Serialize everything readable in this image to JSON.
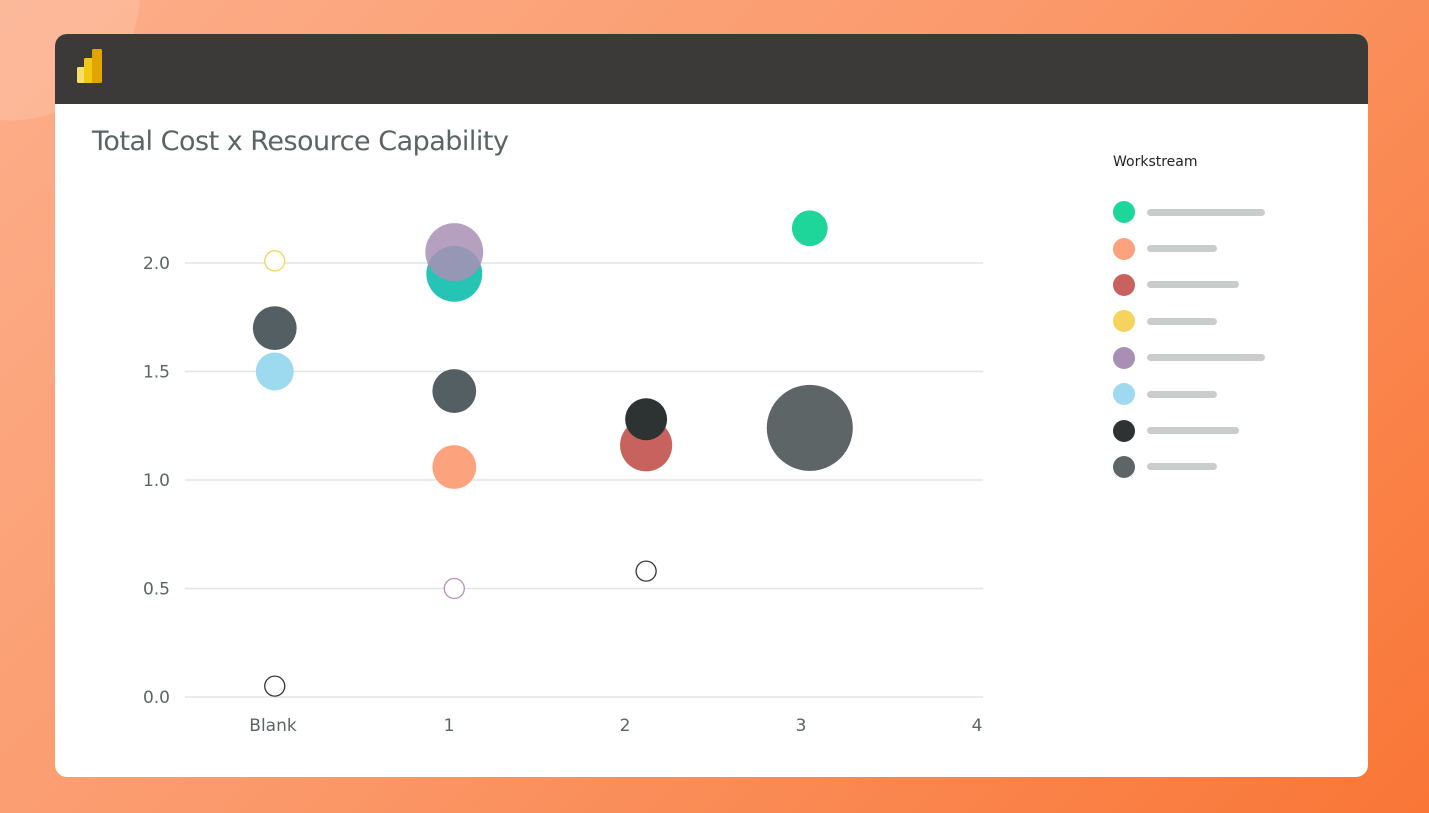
{
  "app": {
    "logo": "power-bi-logo"
  },
  "chart_data": {
    "type": "scatter",
    "title": "Total Cost x Resource Capability",
    "xlabel": "",
    "ylabel": "",
    "x_categories": [
      "Blank",
      "1",
      "2",
      "3",
      "4"
    ],
    "y_ticks": [
      "0.0",
      "0.5",
      "1.0",
      "1.5",
      "2.0"
    ],
    "ylim": [
      0,
      2.3
    ],
    "grid": true,
    "legend": {
      "title": "Workstream",
      "placement": "right",
      "colors": [
        "#1fd69a",
        "#fca27c",
        "#c8625f",
        "#f6d35c",
        "#a98fb4",
        "#9dd9ef",
        "#2d3232",
        "#5e6566"
      ]
    },
    "points": [
      {
        "x": 0.01,
        "y": 2.01,
        "size": 1,
        "color": "#f6d35c",
        "hollow": true
      },
      {
        "x": 0.01,
        "y": 1.7,
        "size": 4.8,
        "color": "#535f62",
        "hollow": false
      },
      {
        "x": 0.01,
        "y": 1.5,
        "size": 3.6,
        "color": "#9dd9ef",
        "hollow": false
      },
      {
        "x": 0.01,
        "y": 0.05,
        "size": 1,
        "color": "#333333",
        "hollow": true
      },
      {
        "x": 1.03,
        "y": 1.95,
        "size": 7.8,
        "color": "#26c4b5",
        "hollow": false
      },
      {
        "x": 1.03,
        "y": 2.05,
        "size": 8.4,
        "color": "#a98fb4",
        "hollow": false,
        "opacity": 0.85
      },
      {
        "x": 1.03,
        "y": 1.41,
        "size": 4.8,
        "color": "#535f62",
        "hollow": false
      },
      {
        "x": 1.03,
        "y": 1.06,
        "size": 4.8,
        "color": "#fca27c",
        "hollow": false
      },
      {
        "x": 1.03,
        "y": 0.5,
        "size": 1,
        "color": "#b98cc0",
        "hollow": true
      },
      {
        "x": 2.12,
        "y": 1.16,
        "size": 6.8,
        "color": "#c8625f",
        "hollow": false
      },
      {
        "x": 2.12,
        "y": 1.28,
        "size": 4.4,
        "color": "#2d3232",
        "hollow": false
      },
      {
        "x": 2.12,
        "y": 0.58,
        "size": 1,
        "color": "#333333",
        "hollow": true
      },
      {
        "x": 3.05,
        "y": 2.16,
        "size": 3.2,
        "color": "#1fd69a",
        "hollow": false
      },
      {
        "x": 3.05,
        "y": 1.24,
        "size": 18.5,
        "color": "#5e6566",
        "hollow": false
      }
    ]
  }
}
